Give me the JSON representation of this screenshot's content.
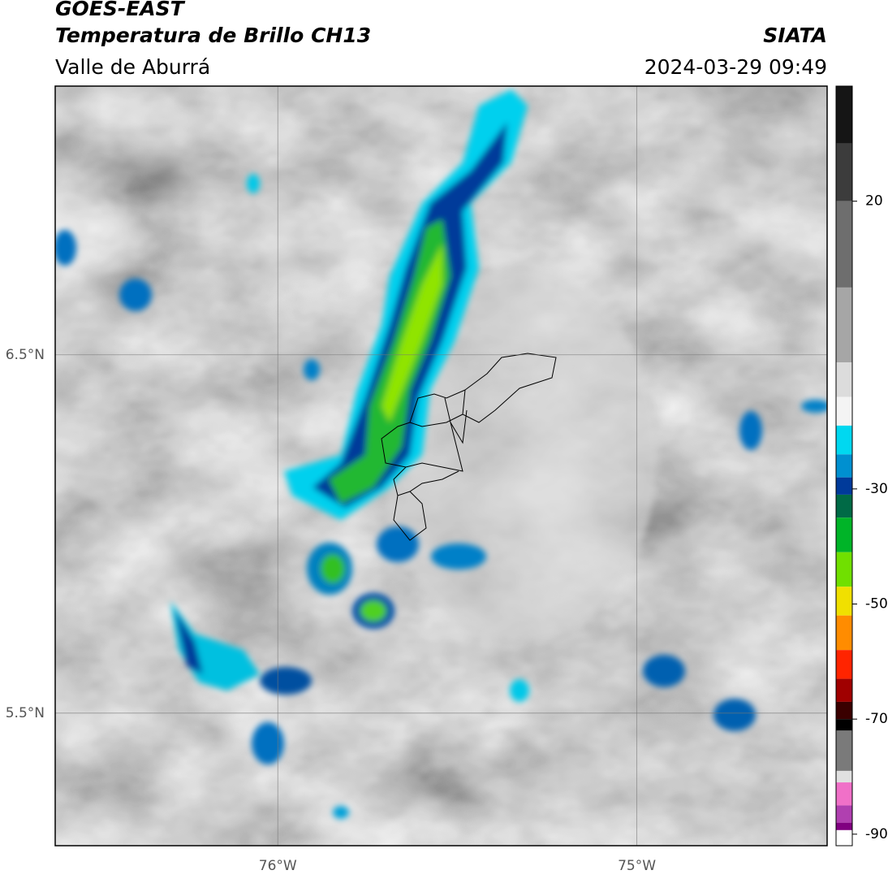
{
  "header": {
    "title": "GOES-EAST",
    "subtitle": "Temperatura de Brillo CH13",
    "region": "Valle de Aburrá",
    "source": "SIATA",
    "datetime": "2024-03-29 09:49"
  },
  "map": {
    "xlim": [
      -76.62,
      -74.47
    ],
    "ylim": [
      5.13,
      7.25
    ],
    "xticks": [
      {
        "value": -76,
        "label": "76°W"
      },
      {
        "value": -75,
        "label": "75°W"
      }
    ],
    "yticks": [
      {
        "value": 6.5,
        "label": "6.5°N"
      },
      {
        "value": 5.5,
        "label": "5.5°N"
      }
    ],
    "grid": true
  },
  "colorbar": {
    "lim": [
      -92,
      40
    ],
    "ticks": [
      20,
      -30,
      -50,
      -70,
      -90
    ],
    "stops": [
      {
        "value": 40,
        "color": "#151515"
      },
      {
        "value": 30,
        "color": "#3c3c3c"
      },
      {
        "value": 20,
        "color": "#6e6e6e"
      },
      {
        "value": 5,
        "color": "#a6a6a6"
      },
      {
        "value": -8,
        "color": "#dcdcdc"
      },
      {
        "value": -14,
        "color": "#f4f4f4"
      },
      {
        "value": -19,
        "color": "#00d8f0"
      },
      {
        "value": -24,
        "color": "#0090d0"
      },
      {
        "value": -28,
        "color": "#003a9a"
      },
      {
        "value": -31,
        "color": "#006a46"
      },
      {
        "value": -35,
        "color": "#00b428"
      },
      {
        "value": -41,
        "color": "#70e000"
      },
      {
        "value": -47,
        "color": "#f0e000"
      },
      {
        "value": -52,
        "color": "#ff8c00"
      },
      {
        "value": -58,
        "color": "#ff2400"
      },
      {
        "value": -63,
        "color": "#a00000"
      },
      {
        "value": -67,
        "color": "#3a0000"
      },
      {
        "value": -70,
        "color": "#000000"
      },
      {
        "value": -72,
        "color": "#7a7a7a"
      },
      {
        "value": -79,
        "color": "#e0e0e0"
      },
      {
        "value": -81,
        "color": "#f070c8"
      },
      {
        "value": -85,
        "color": "#b040b0"
      },
      {
        "value": -88,
        "color": "#800080"
      },
      {
        "value": -89.3,
        "color": "#ffffff"
      }
    ]
  }
}
